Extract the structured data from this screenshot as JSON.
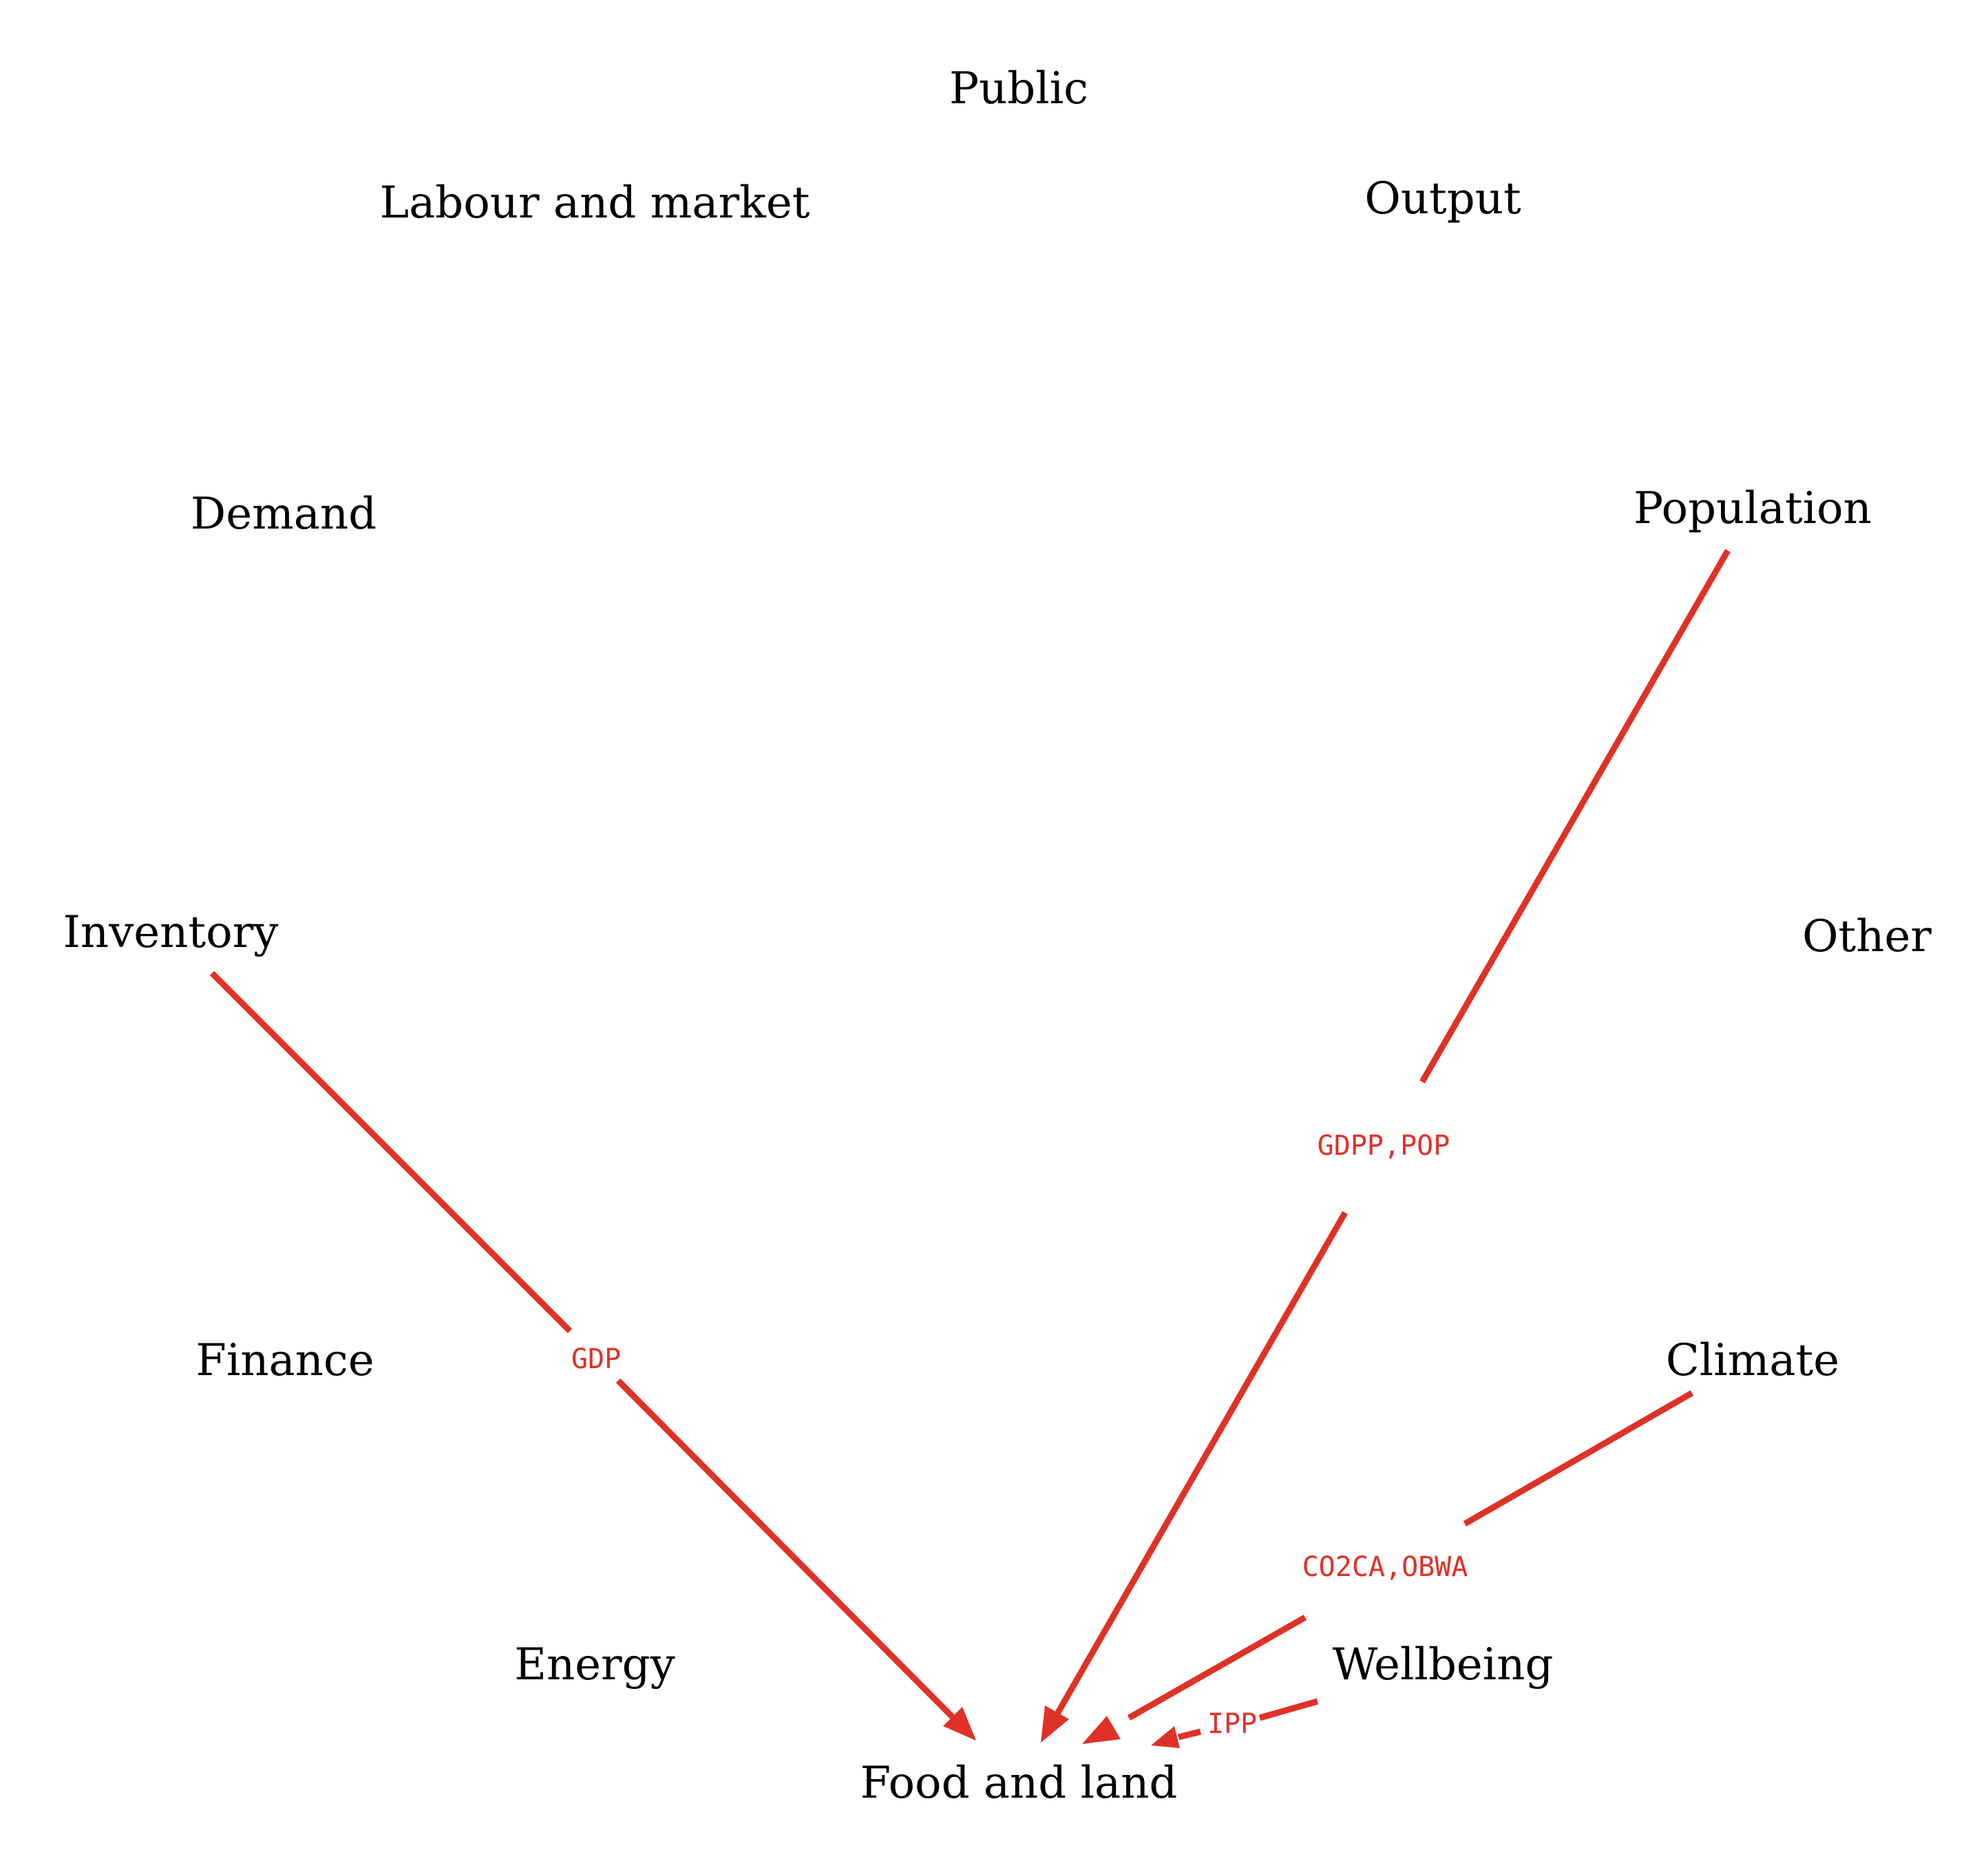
{
  "colors": {
    "edge": "#e03127",
    "text": "#000000",
    "background": "#ffffff"
  },
  "nodes": {
    "public": "Public",
    "labour": "Labour and market",
    "output": "Output",
    "demand": "Demand",
    "population": "Population",
    "inventory": "Inventory",
    "other": "Other",
    "finance": "Finance",
    "climate": "Climate",
    "energy": "Energy",
    "wellbeing": "Wellbeing",
    "food": "Food and land"
  },
  "edges": [
    {
      "from": "inventory",
      "to": "food",
      "label": "GDP"
    },
    {
      "from": "population",
      "to": "food",
      "label": "GDPP,POP"
    },
    {
      "from": "climate",
      "to": "food",
      "label": "CO2CA,OBWA"
    },
    {
      "from": "wellbeing",
      "to": "food",
      "label": "IPP"
    }
  ]
}
